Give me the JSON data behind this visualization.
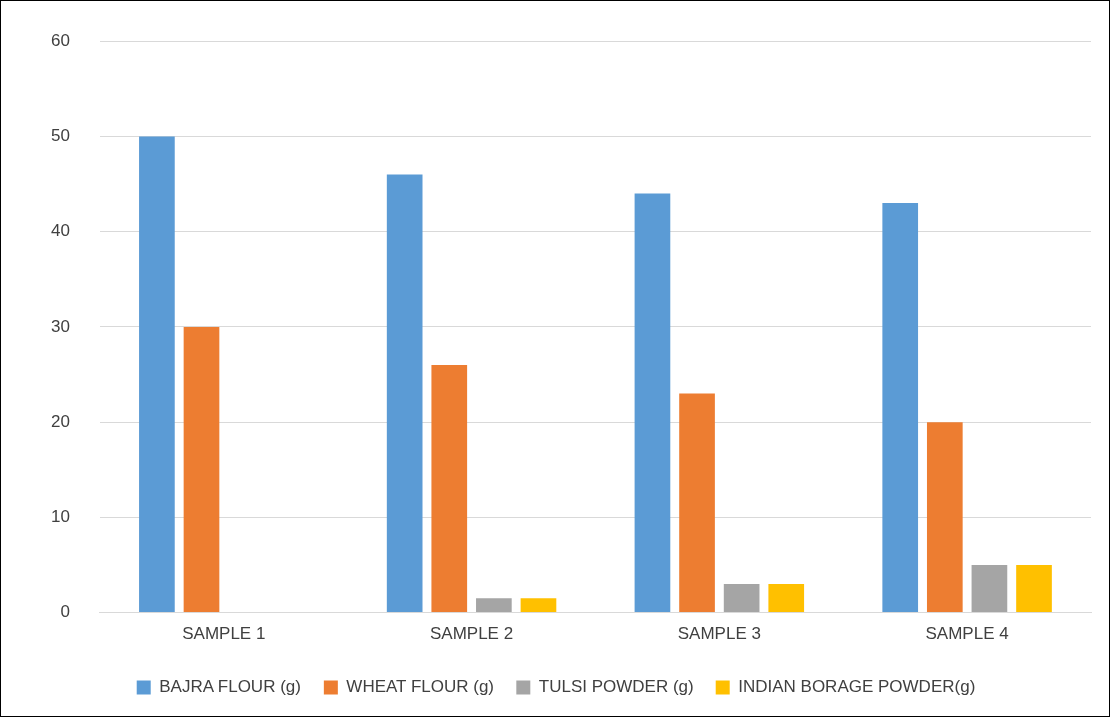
{
  "chart_data": {
    "type": "bar",
    "categories": [
      "SAMPLE 1",
      "SAMPLE 2",
      "SAMPLE 3",
      "SAMPLE 4"
    ],
    "series": [
      {
        "name": "BAJRA FLOUR (g)",
        "color": "#5b9bd5",
        "values": [
          50,
          46,
          44,
          43
        ]
      },
      {
        "name": "WHEAT FLOUR (g)",
        "color": "#ed7d31",
        "values": [
          30,
          26,
          23,
          20
        ]
      },
      {
        "name": "TULSI POWDER (g)",
        "color": "#a5a5a5",
        "values": [
          0,
          1.5,
          3,
          5
        ]
      },
      {
        "name": "INDIAN BORAGE POWDER(g)",
        "color": "#ffc000",
        "values": [
          0,
          1.5,
          3,
          5
        ]
      }
    ],
    "ylim": [
      0,
      60
    ],
    "yticks": [
      0,
      10,
      20,
      30,
      40,
      50,
      60
    ],
    "grid": "y",
    "legend": "bottom"
  }
}
